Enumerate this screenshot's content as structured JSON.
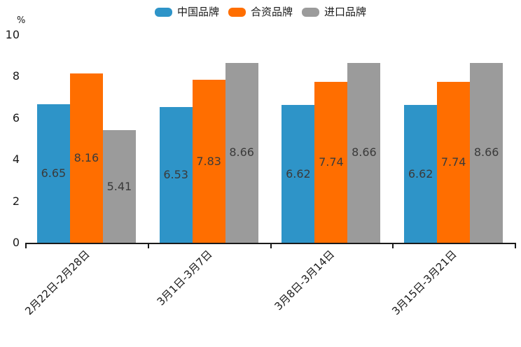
{
  "chart_data": {
    "type": "bar",
    "title": "",
    "unit_label": "%",
    "categories": [
      "2月22日-2月28日",
      "3月1日-3月7日",
      "3月8日-3月14日",
      "3月15日-3月21日"
    ],
    "series": [
      {
        "name": "中国品牌",
        "color": "#2E94C8",
        "values": [
          6.65,
          6.53,
          6.62,
          6.62
        ]
      },
      {
        "name": "合资品牌",
        "color": "#FF6E00",
        "values": [
          8.16,
          7.83,
          7.74,
          7.74
        ]
      },
      {
        "name": "进口品牌",
        "color": "#9B9B9B",
        "values": [
          5.41,
          8.66,
          8.66,
          8.66
        ]
      }
    ],
    "ylim": [
      0,
      10
    ],
    "yticks": [
      0,
      2,
      4,
      6,
      8,
      10
    ],
    "legend_position": "top",
    "grid": false,
    "value_labels_inside_bars": true,
    "x_label_rotation_deg": 45,
    "axis_color": "#1a1a1a",
    "value_label_color": "#3a3a3a"
  }
}
